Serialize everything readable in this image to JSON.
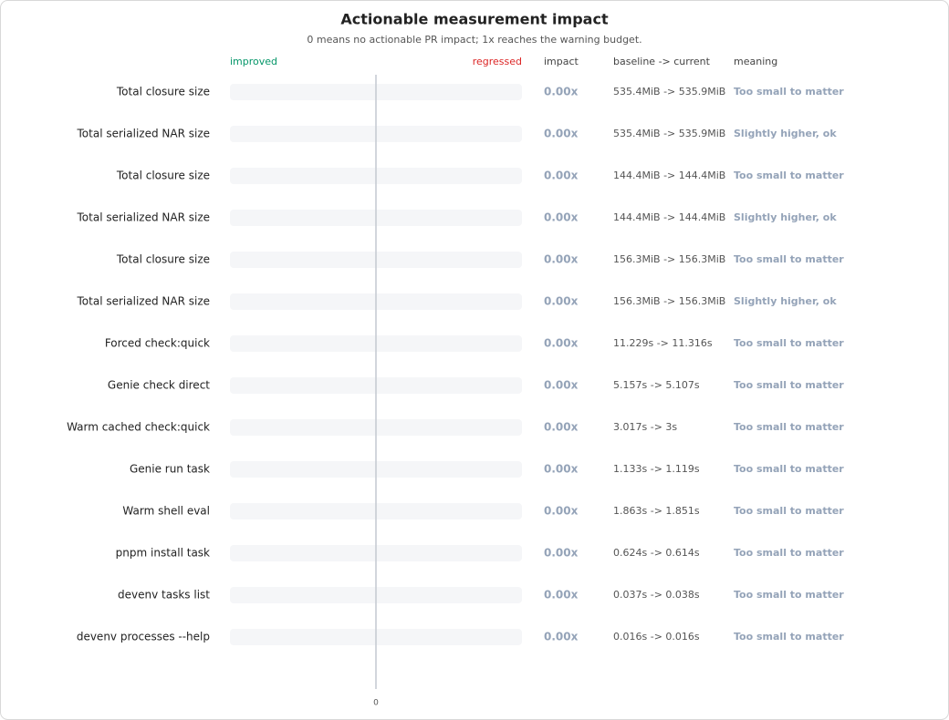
{
  "chart_data": {
    "type": "bar",
    "orientation": "horizontal",
    "title": "Actionable measurement impact",
    "subtitle": "0 means no actionable PR impact; 1x reaches the warning budget.",
    "left_label": "improved",
    "right_label": "regressed",
    "column_headers": [
      "impact",
      "baseline -> current",
      "meaning"
    ],
    "categories": [
      "Total closure size",
      "Total serialized NAR size",
      "Total closure size",
      "Total serialized NAR size",
      "Total closure size",
      "Total serialized NAR size",
      "Forced check:quick",
      "Genie check direct",
      "Warm cached check:quick",
      "Genie run task",
      "Warm shell eval",
      "pnpm install task",
      "devenv tasks list",
      "devenv processes --help"
    ],
    "values": [
      0,
      0,
      0,
      0,
      0,
      0,
      0,
      0,
      0,
      0,
      0,
      0,
      0,
      0
    ],
    "value_labels": [
      "0.00x",
      "0.00x",
      "0.00x",
      "0.00x",
      "0.00x",
      "0.00x",
      "0.00x",
      "0.00x",
      "0.00x",
      "0.00x",
      "0.00x",
      "0.00x",
      "0.00x",
      "0.00x"
    ],
    "baseline_current": [
      "535.4MiB -> 535.9MiB",
      "535.4MiB -> 535.9MiB",
      "144.4MiB -> 144.4MiB",
      "144.4MiB -> 144.4MiB",
      "156.3MiB -> 156.3MiB",
      "156.3MiB -> 156.3MiB",
      "11.229s -> 11.316s",
      "5.157s -> 5.107s",
      "3.017s -> 3s",
      "1.133s -> 1.119s",
      "1.863s -> 1.851s",
      "0.624s -> 0.614s",
      "0.037s -> 0.038s",
      "0.016s -> 0.016s"
    ],
    "meaning": [
      "Too small to matter",
      "Slightly higher, ok",
      "Too small to matter",
      "Slightly higher, ok",
      "Too small to matter",
      "Slightly higher, ok",
      "Too small to matter",
      "Too small to matter",
      "Too small to matter",
      "Too small to matter",
      "Too small to matter",
      "Too small to matter",
      "Too small to matter",
      "Too small to matter"
    ],
    "xlim": [
      -1,
      1
    ],
    "xticks": [
      0
    ],
    "color": "#94a3b8"
  }
}
